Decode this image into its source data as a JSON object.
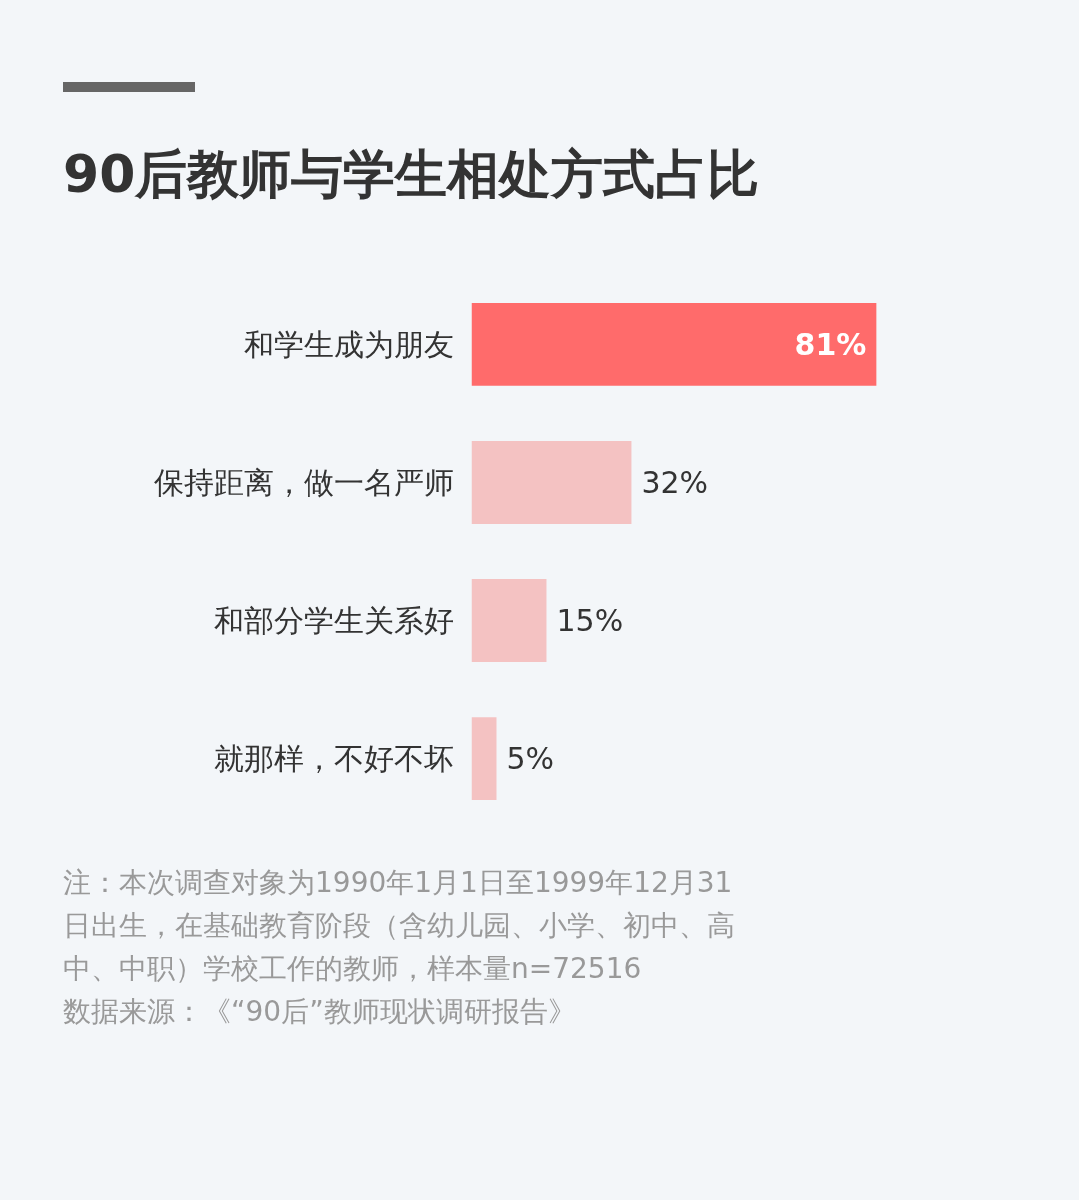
{
  "chart_data": {
    "type": "bar",
    "orientation": "horizontal",
    "title": "90后教师与学生相处方式占比",
    "categories": [
      "和学生成为朋友",
      "保持距离，做一名严师",
      "和部分学生关系好",
      "就那样，不好不坏"
    ],
    "values": [
      81,
      32,
      15,
      5
    ],
    "colors": [
      "#ff6b6b",
      "#f4c2c2",
      "#f4c2c2",
      "#f4c2c2"
    ],
    "value_labels": [
      "81%",
      "32%",
      "15%",
      "5%"
    ],
    "tick_labels": "y",
    "grid": false,
    "annotations": [
      "注：本次调查对象为1990年1月1日至1999年12月31日出生，在基础教育阶段（含幼儿园、小学、初中、高中、中职）学校工作的教师，样本量n=72516",
      "数据来源：《“90后”教师现状调研报告》"
    ]
  }
}
